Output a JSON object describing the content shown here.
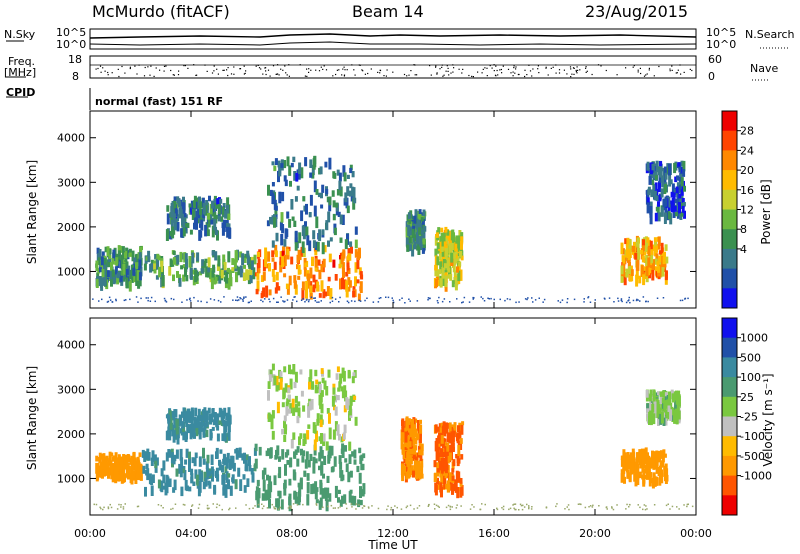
{
  "header": {
    "station": "McMurdo (fitACF)",
    "beam": "Beam 14",
    "date": "23/Aug/2015"
  },
  "status_panel": {
    "nsky_label": "N.Sky",
    "nsky_ticks": [
      "10^5",
      "10^0"
    ],
    "nsearch_label": "N.Search",
    "nsearch_ticks": [
      "10^5",
      "10^0"
    ],
    "freq_label_1": "Freq.",
    "freq_label_2": "[MHz]",
    "freq_ticks": [
      "18",
      "8"
    ],
    "nave_label": "Nave",
    "nave_ticks": [
      "60",
      "0"
    ],
    "cpid_label": "CPID",
    "cpid_value": "normal (fast) 151 RF"
  },
  "chart_data": [
    {
      "type": "heatmap",
      "name": "power",
      "ylabel": "Slant Range [km]",
      "ylim": [
        180,
        4600
      ],
      "yticks": [
        1000,
        2000,
        3000,
        4000
      ],
      "xlim": [
        0,
        24
      ],
      "colorbar": {
        "label": "Power [dB]",
        "ticks": [
          "28",
          "24",
          "20",
          "16",
          "12",
          "8",
          "4"
        ],
        "colors": [
          "#ee0000",
          "#ff4400",
          "#ff8800",
          "#ffbb00",
          "#c8d030",
          "#6ab840",
          "#3a9050",
          "#3a7a8a",
          "#2050a8",
          "#1010ee"
        ]
      },
      "regions": [
        {
          "t0": 0.2,
          "t1": 2.0,
          "r0": 800,
          "r1": 1600,
          "v": 10
        },
        {
          "t0": 2.0,
          "t1": 6.5,
          "r0": 850,
          "r1": 1500,
          "v": 12
        },
        {
          "t0": 3.0,
          "t1": 5.5,
          "r0": 1900,
          "r1": 2700,
          "v": 8
        },
        {
          "t0": 6.5,
          "t1": 10.8,
          "r0": 500,
          "r1": 1600,
          "v": 24
        },
        {
          "t0": 7.0,
          "t1": 10.5,
          "r0": 1600,
          "r1": 3600,
          "v": 8
        },
        {
          "t0": 12.5,
          "t1": 13.2,
          "r0": 1600,
          "r1": 2400,
          "v": 10
        },
        {
          "t0": 13.6,
          "t1": 14.7,
          "r0": 800,
          "r1": 2000,
          "v": 18
        },
        {
          "t0": 21.0,
          "t1": 22.8,
          "r0": 900,
          "r1": 1800,
          "v": 22
        },
        {
          "t0": 22.0,
          "t1": 23.5,
          "r0": 2300,
          "r1": 3500,
          "v": 6
        }
      ]
    },
    {
      "type": "heatmap",
      "name": "velocity",
      "ylabel": "Slant Range [km]",
      "ylim": [
        180,
        4600
      ],
      "yticks": [
        1000,
        2000,
        3000,
        4000
      ],
      "xlim": [
        0,
        24
      ],
      "xticks": [
        "00:00",
        "04:00",
        "08:00",
        "12:00",
        "16:00",
        "20:00",
        "00:00"
      ],
      "xlabel": "Time UT",
      "colorbar": {
        "label": "Velocity [m s⁻¹]",
        "ticks": [
          "1000",
          "500",
          "100",
          "25",
          "-25",
          "-100",
          "-500",
          "-1000"
        ],
        "colors": [
          "#1010ee",
          "#2050a8",
          "#3a8aa0",
          "#4a9a70",
          "#7ac840",
          "#c0c0c0",
          "#ffbb00",
          "#ff9900",
          "#ff5500",
          "#ee0000"
        ]
      },
      "regions": [
        {
          "t0": 0.2,
          "t1": 2.0,
          "r0": 1100,
          "r1": 1600,
          "v": -150
        },
        {
          "t0": 2.0,
          "t1": 6.5,
          "r0": 800,
          "r1": 1700,
          "v": 450
        },
        {
          "t0": 3.0,
          "t1": 5.5,
          "r0": 2000,
          "r1": 2600,
          "v": 500
        },
        {
          "t0": 6.5,
          "t1": 10.8,
          "r0": 500,
          "r1": 1800,
          "v": 200
        },
        {
          "t0": 7.0,
          "t1": 10.5,
          "r0": 1800,
          "r1": 3600,
          "v": 20
        },
        {
          "t0": 12.3,
          "t1": 13.1,
          "r0": 1100,
          "r1": 2400,
          "v": -250
        },
        {
          "t0": 13.6,
          "t1": 14.7,
          "r0": 800,
          "r1": 2300,
          "v": -400
        },
        {
          "t0": 21.0,
          "t1": 22.8,
          "r0": 1000,
          "r1": 1700,
          "v": -150
        },
        {
          "t0": 22.0,
          "t1": 23.3,
          "r0": 2400,
          "r1": 3000,
          "v": 30
        }
      ]
    }
  ]
}
